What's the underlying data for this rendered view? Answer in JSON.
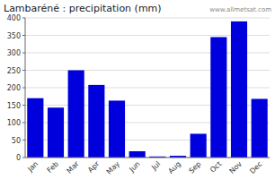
{
  "chart_data": {
    "type": "bar",
    "title": "Lambaréné : precipitation (mm)",
    "categories": [
      "Jan",
      "Feb",
      "Mar",
      "Apr",
      "May",
      "Jun",
      "Jul",
      "Aug",
      "Sep",
      "Oct",
      "Nov",
      "Dec"
    ],
    "values": [
      170,
      143,
      250,
      208,
      163,
      18,
      3,
      5,
      68,
      345,
      390,
      168
    ],
    "color": "#0000dd",
    "ylim": [
      0,
      400
    ],
    "yticks": [
      0,
      50,
      100,
      150,
      200,
      250,
      300,
      350,
      400
    ],
    "grid": true,
    "annotations": [
      "www.allmetsat.com"
    ]
  }
}
